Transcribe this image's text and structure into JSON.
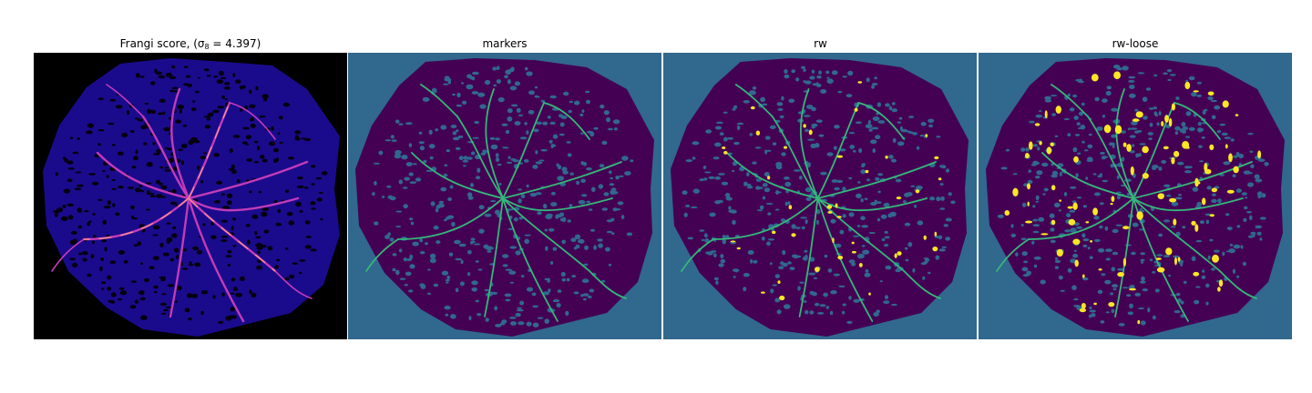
{
  "figure": {
    "panels": [
      {
        "title_text": "Frangi score, (σ",
        "title_subscript": "8",
        "title_suffix": " = 4.397)",
        "image": "frangi-vesselness-map",
        "background": "#000000",
        "disk": "#1a0b8c",
        "vessels": "#c23bb8",
        "highlight": "#f59a8a"
      },
      {
        "title": "markers",
        "image": "marker-labels",
        "background": "#31688e",
        "disk": "#440154",
        "vessels": "#35b779"
      },
      {
        "title": "rw",
        "image": "random-walker-segmentation",
        "background": "#31688e",
        "disk": "#440154",
        "vessels": "#35b779",
        "segmented": "#fde725"
      },
      {
        "title": "rw-loose",
        "image": "random-walker-loose-segmentation",
        "background": "#31688e",
        "disk": "#440154",
        "vessels": "#35b779",
        "segmented": "#fde725"
      }
    ]
  }
}
